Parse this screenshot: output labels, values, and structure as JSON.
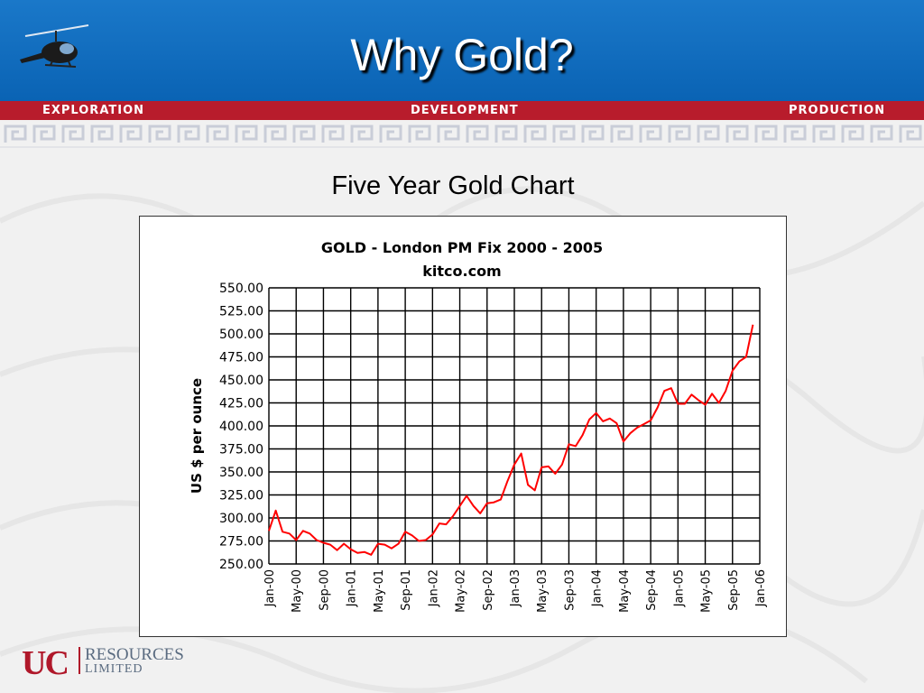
{
  "slide": {
    "title": "Why Gold?",
    "subtitle": "Five Year Gold Chart",
    "banner": {
      "left": "EXPLORATION",
      "center": "DEVELOPMENT",
      "right": "PRODUCTION"
    },
    "logo": {
      "mark": "UC",
      "name": "RESOURCES",
      "suffix": "LIMITED"
    }
  },
  "colors": {
    "header": "#0a6cc0",
    "redbar": "#b81c2c",
    "line": "#ff0000"
  },
  "chart_data": {
    "type": "line",
    "title": "GOLD - London PM Fix 2000 - 2005",
    "subtitle": "kitco.com",
    "ylabel": "US $ per ounce",
    "xlabel": "",
    "ylim": [
      250,
      550
    ],
    "grid": true,
    "y_ticks": [
      "550.00",
      "525.00",
      "500.00",
      "475.00",
      "450.00",
      "425.00",
      "400.00",
      "375.00",
      "350.00",
      "325.00",
      "300.00",
      "275.00",
      "250.00"
    ],
    "x_ticks": [
      "Jan-00",
      "May-00",
      "Sep-00",
      "Jan-01",
      "May-01",
      "Sep-01",
      "Jan-02",
      "May-02",
      "Sep-02",
      "Jan-03",
      "May-03",
      "Sep-03",
      "Jan-04",
      "May-04",
      "Sep-04",
      "Jan-05",
      "May-05",
      "Sep-05",
      "Jan-06"
    ],
    "series": [
      {
        "name": "",
        "x": [
          "2000-01",
          "2000-02",
          "2000-03",
          "2000-04",
          "2000-05",
          "2000-06",
          "2000-07",
          "2000-08",
          "2000-09",
          "2000-10",
          "2000-11",
          "2000-12",
          "2001-01",
          "2001-02",
          "2001-03",
          "2001-04",
          "2001-05",
          "2001-06",
          "2001-07",
          "2001-08",
          "2001-09",
          "2001-10",
          "2001-11",
          "2001-12",
          "2002-01",
          "2002-02",
          "2002-03",
          "2002-04",
          "2002-05",
          "2002-06",
          "2002-07",
          "2002-08",
          "2002-09",
          "2002-10",
          "2002-11",
          "2002-12",
          "2003-01",
          "2003-02",
          "2003-03",
          "2003-04",
          "2003-05",
          "2003-06",
          "2003-07",
          "2003-08",
          "2003-09",
          "2003-10",
          "2003-11",
          "2003-12",
          "2004-01",
          "2004-02",
          "2004-03",
          "2004-04",
          "2004-05",
          "2004-06",
          "2004-07",
          "2004-08",
          "2004-09",
          "2004-10",
          "2004-11",
          "2004-12",
          "2005-01",
          "2005-02",
          "2005-03",
          "2005-04",
          "2005-05",
          "2005-06",
          "2005-07",
          "2005-08",
          "2005-09",
          "2005-10",
          "2005-11",
          "2005-12"
        ],
        "values": [
          286,
          308,
          285,
          283,
          276,
          286,
          283,
          276,
          273,
          271,
          265,
          272,
          266,
          262,
          263,
          260,
          272,
          271,
          267,
          272,
          285,
          281,
          275,
          276,
          282,
          294,
          293,
          302,
          313,
          324,
          313,
          305,
          316,
          317,
          320,
          340,
          358,
          370,
          336,
          330,
          355,
          356,
          348,
          358,
          380,
          378,
          390,
          407,
          414,
          405,
          408,
          403,
          383,
          392,
          398,
          402,
          406,
          420,
          438,
          441,
          424,
          424,
          434,
          428,
          423,
          435,
          425,
          438,
          460,
          470,
          475,
          510
        ]
      }
    ]
  }
}
